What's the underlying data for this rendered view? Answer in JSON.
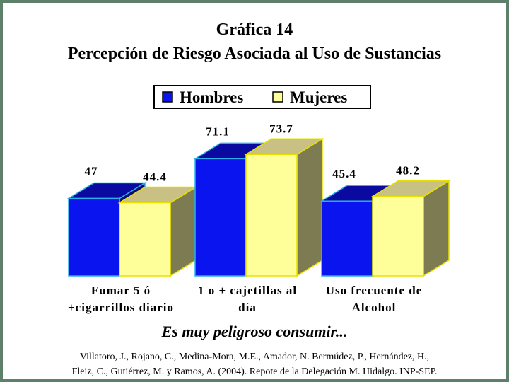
{
  "heading": {
    "line1": "Gráfica 14",
    "line2": "Percepción de Riesgo Asociada al Uso de Sustancias"
  },
  "chart_data": {
    "type": "bar",
    "categories": [
      [
        "Fumar 5 ó",
        "+cigarrillos diario"
      ],
      [
        "1 o + cajetillas al",
        "día"
      ],
      [
        "Uso frecuente de",
        "Alcohol"
      ]
    ],
    "series": [
      {
        "name": "Hombres",
        "values": [
          47,
          71.1,
          45.4
        ],
        "value_labels": [
          "47",
          "71.1",
          "45.4"
        ]
      },
      {
        "name": "Mujeres",
        "values": [
          44.4,
          73.7,
          48.2
        ],
        "value_labels": [
          "44.4",
          "73.7",
          "48.2"
        ]
      }
    ],
    "ylim": [
      0,
      100
    ],
    "grid": false,
    "legend": "top-center",
    "style": "3d-clustered-column"
  },
  "colors": {
    "Hombres": {
      "front": "#0a14ee",
      "top": "#0a0aa0",
      "side": "#07077a",
      "edge": "#2ab0e8"
    },
    "Mujeres": {
      "front": "#ffff99",
      "top": "#c9c083",
      "side": "#7d7b52",
      "edge": "#e8e000"
    },
    "frame": "#5e7f6a"
  },
  "caption": "Es muy peligroso consumir...",
  "source": {
    "line1": "Villatoro, J., Rojano, C., Medina-Mora, M.E., Amador, N. Bermúdez, P., Hernández, H.,",
    "line2": "Fleiz, C., Gutiérrez, M. y Ramos, A. (2004). Repote de la Delegación M. Hidalgo. INP-SEP."
  }
}
